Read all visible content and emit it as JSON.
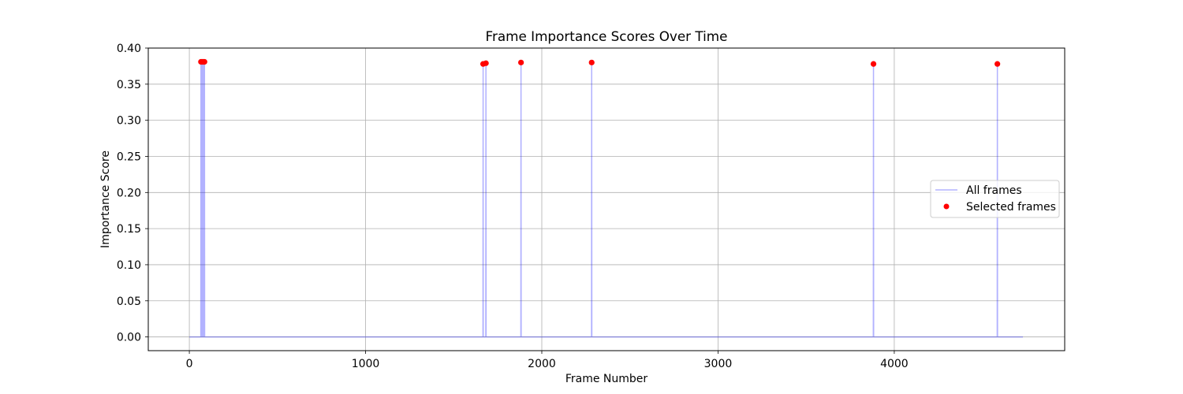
{
  "chart_data": {
    "type": "line",
    "title": "Frame Importance Scores Over Time",
    "xlabel": "Frame Number",
    "ylabel": "Importance Score",
    "xlim": [
      -233,
      4967
    ],
    "ylim": [
      -0.019,
      0.4
    ],
    "xticks": [
      0,
      1000,
      2000,
      3000,
      4000
    ],
    "yticks": [
      0.0,
      0.05,
      0.1,
      0.15,
      0.2,
      0.25,
      0.3,
      0.35,
      0.4
    ],
    "ytick_labels": [
      "0.00",
      "0.05",
      "0.10",
      "0.15",
      "0.20",
      "0.25",
      "0.30",
      "0.35",
      "0.40"
    ],
    "grid": true,
    "legend_position": "center-right",
    "x_max": 4730,
    "series": [
      {
        "name": "All frames",
        "style": "line",
        "color": "#0000ff",
        "alpha": 0.3,
        "peaks": [
          {
            "x": 66,
            "y": 0.381
          },
          {
            "x": 70,
            "y": 0.381
          },
          {
            "x": 74,
            "y": 0.381
          },
          {
            "x": 78,
            "y": 0.381
          },
          {
            "x": 82,
            "y": 0.381
          },
          {
            "x": 86,
            "y": 0.381
          },
          {
            "x": 1667,
            "y": 0.378
          },
          {
            "x": 1683,
            "y": 0.379
          },
          {
            "x": 1882,
            "y": 0.38
          },
          {
            "x": 2283,
            "y": 0.38
          },
          {
            "x": 3882,
            "y": 0.378
          },
          {
            "x": 4585,
            "y": 0.378
          }
        ]
      },
      {
        "name": "Selected frames",
        "style": "scatter",
        "color": "#ff0000",
        "points": [
          {
            "x": 66,
            "y": 0.381
          },
          {
            "x": 70,
            "y": 0.381
          },
          {
            "x": 74,
            "y": 0.381
          },
          {
            "x": 78,
            "y": 0.381
          },
          {
            "x": 82,
            "y": 0.381
          },
          {
            "x": 86,
            "y": 0.381
          },
          {
            "x": 1667,
            "y": 0.378
          },
          {
            "x": 1683,
            "y": 0.379
          },
          {
            "x": 1882,
            "y": 0.38
          },
          {
            "x": 2283,
            "y": 0.38
          },
          {
            "x": 3882,
            "y": 0.378
          },
          {
            "x": 4585,
            "y": 0.378
          }
        ]
      }
    ]
  }
}
